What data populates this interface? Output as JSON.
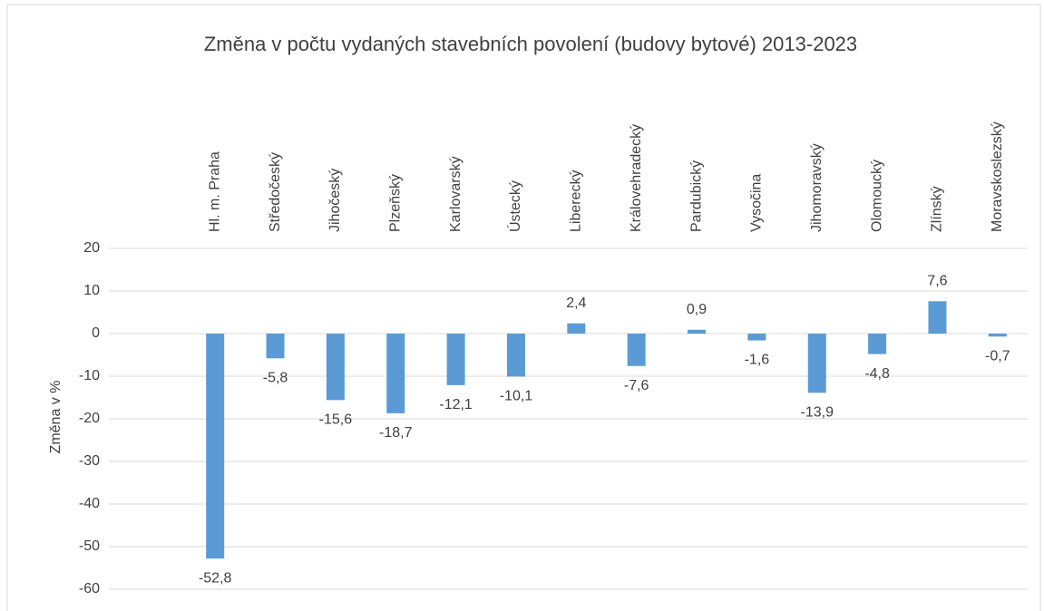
{
  "chart_data": {
    "type": "bar",
    "title": "Změna v počtu vydaných stavebních povolení (budovy bytové) 2013-2023",
    "y_label": "Změna v %",
    "categories": [
      "Hl. m. Praha",
      "Středočeský",
      "Jihočeský",
      "Plzeňský",
      "Karlovarský",
      "Ústecký",
      "Liberecký",
      "Královehradecký",
      "Pardubický",
      "Vysočina",
      "Jihomoravský",
      "Olomoucký",
      "Zlínský",
      "Moravskoslezský"
    ],
    "values": [
      -52.8,
      -5.8,
      -15.6,
      -18.7,
      -12.1,
      -10.1,
      2.4,
      -7.6,
      0.9,
      -1.6,
      -13.9,
      -4.8,
      7.6,
      -0.7
    ],
    "value_labels": [
      "-52,8",
      "-5,8",
      "-15,6",
      "-18,7",
      "-12,1",
      "-10,1",
      "2,4",
      "-7,6",
      "0,9",
      "-1,6",
      "-13,9",
      "-4,8",
      "7,6",
      "-0,7"
    ],
    "color": "#5b9bd5",
    "ylim": [
      -60,
      20
    ],
    "yticks": [
      -60,
      -50,
      -40,
      -30,
      -20,
      -10,
      0,
      10,
      20
    ],
    "grid": true
  }
}
